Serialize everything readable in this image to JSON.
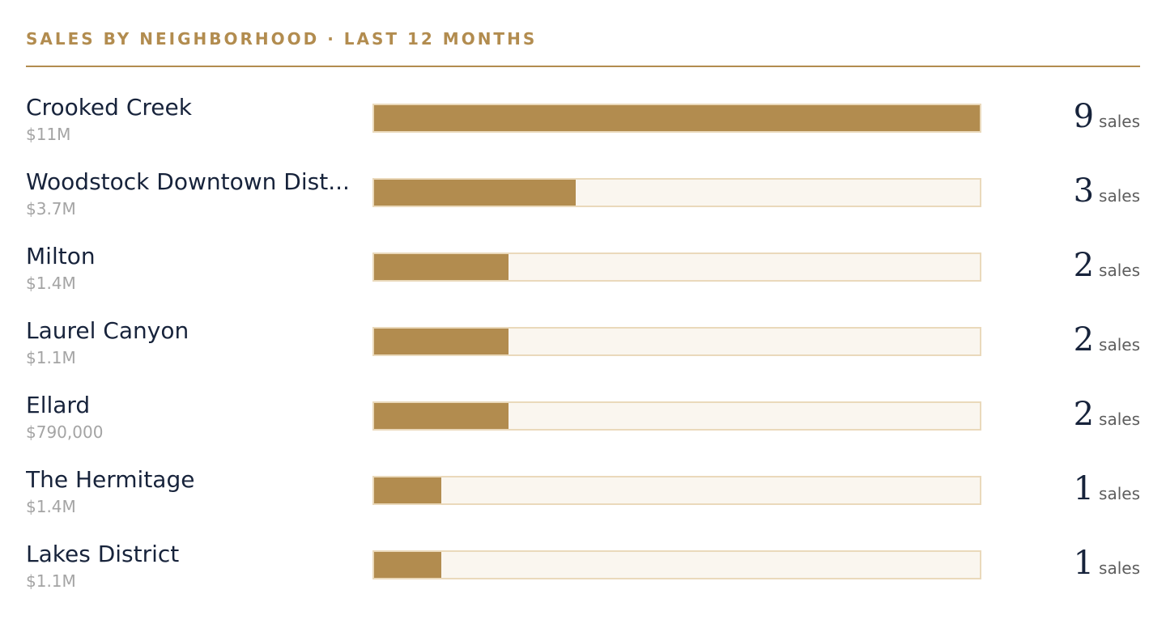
{
  "header": {
    "title": "SALES BY NEIGHBORHOOD · LAST 12 MONTHS"
  },
  "colors": {
    "accent": "#b28c4f",
    "bar_fill": "#b28c4f",
    "bar_track": "#faf6ef",
    "bar_border": "#ead9bb",
    "name_text": "#17233b",
    "volume_text": "#a4a4a4"
  },
  "unit_label": "sales",
  "chart_data": {
    "type": "bar",
    "orientation": "horizontal",
    "title": "SALES BY NEIGHBORHOOD · LAST 12 MONTHS",
    "xlim": [
      0,
      9
    ],
    "grid": false,
    "categories": [
      "Crooked Creek",
      "Woodstock Downtown Dist...",
      "Milton",
      "Laurel Canyon",
      "Ellard",
      "The Hermitage",
      "Lakes District"
    ],
    "values": [
      9,
      3,
      2,
      2,
      2,
      1,
      1
    ],
    "volumes": [
      "$11M",
      "$3.7M",
      "$1.4M",
      "$1.1M",
      "$790,000",
      "$1.4M",
      "$1.1M"
    ]
  }
}
